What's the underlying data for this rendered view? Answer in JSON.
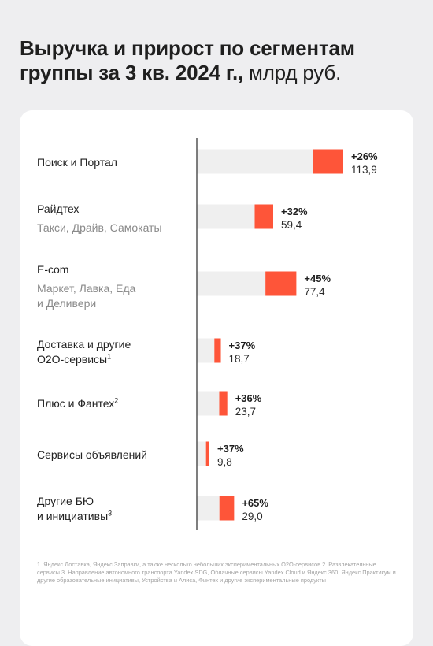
{
  "title": {
    "bold": "Выручка и прирост по сегментам группы за 3 кв. 2024 г.,",
    "light": "млрд руб."
  },
  "colors": {
    "growth_bar": "#fe5539",
    "base_bar": "#efefef",
    "axis": "#3a3a3a"
  },
  "chart_data": {
    "type": "bar",
    "orientation": "horizontal",
    "title": "Выручка и прирост по сегментам группы за 3 кв. 2024 г., млрд руб.",
    "categories": [
      "Поиск и Портал",
      "Райдтех",
      "E-com",
      "Доставка и другие O2O-сервисы",
      "Плюс и Фантех",
      "Сервисы объявлений",
      "Другие БЮ и инициативы"
    ],
    "segments": [
      {
        "label": "Поиск и Портал",
        "sub": "",
        "sup": "",
        "value": 113.9,
        "value_label": "113,9",
        "growth_pct": 26,
        "growth_label": "+26%"
      },
      {
        "label": "Райдтех",
        "sub": "Такси, Драйв, Самокаты",
        "sup": "",
        "value": 59.4,
        "value_label": "59,4",
        "growth_pct": 32,
        "growth_label": "+32%"
      },
      {
        "label": "E-com",
        "sub": "Маркет, Лавка, Еда\nи Деливери",
        "sup": "",
        "value": 77.4,
        "value_label": "77,4",
        "growth_pct": 45,
        "growth_label": "+45%"
      },
      {
        "label": "Доставка и другие\nO2O-сервисы",
        "sub": "",
        "sup": "1",
        "value": 18.7,
        "value_label": "18,7",
        "growth_pct": 37,
        "growth_label": "+37%"
      },
      {
        "label": "Плюс и Фантех",
        "sub": "",
        "sup": "2",
        "value": 23.7,
        "value_label": "23,7",
        "growth_pct": 36,
        "growth_label": "+36%"
      },
      {
        "label": "Сервисы объявлений",
        "sub": "",
        "sup": "",
        "value": 9.8,
        "value_label": "9,8",
        "growth_pct": 37,
        "growth_label": "+37%"
      },
      {
        "label": "Другие БЮ\nи инициативы",
        "sub": "",
        "sup": "3",
        "value": 29.0,
        "value_label": "29,0",
        "growth_pct": 65,
        "growth_label": "+65%"
      }
    ]
  },
  "footnote": "1. Яндекс Доставка, Яндекс Заправки, а также несколько небольших экспериментальных O2O-сервисов 2. Развлекательные сервисы 3. Направление автономного транспорта Yandex SDG, Облачные сервисы Yandex Cloud и Яндекс 360, Яндекс Практикум и другие образовательные инициативы, Устройства и Алиса, Финтех и другие экспериментальные продукты"
}
